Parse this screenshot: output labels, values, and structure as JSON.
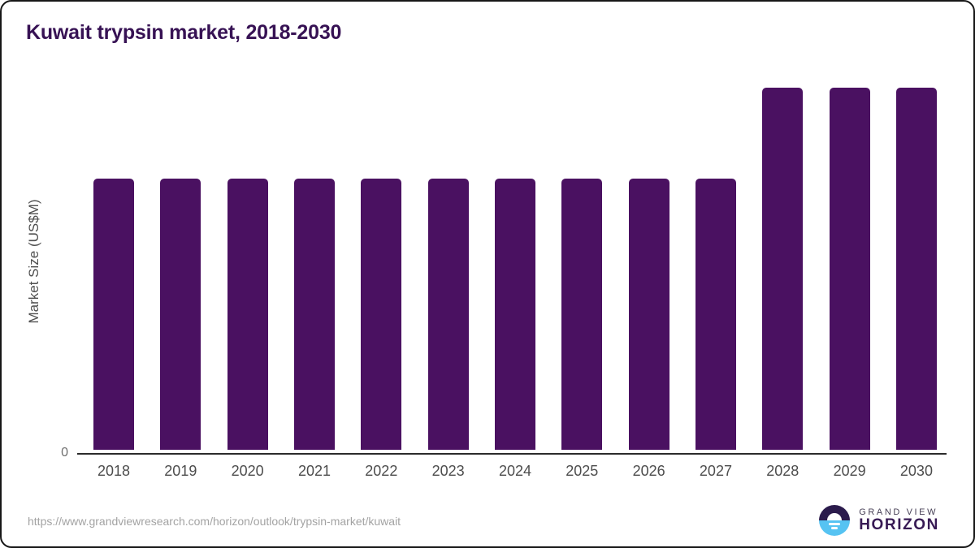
{
  "page": {
    "background": "#ffffff",
    "frame_border_color": "#161616"
  },
  "header": {
    "title": "Kuwait trypsin market, 2018-2030",
    "title_color": "#371254"
  },
  "axes": {
    "zero_label": "0",
    "ylabel": "Market Size (US$M)"
  },
  "chart_data": {
    "type": "bar",
    "title": "Kuwait trypsin market, 2018-2030",
    "categories": [
      "2018",
      "2019",
      "2020",
      "2021",
      "2022",
      "2023",
      "2024",
      "2025",
      "2026",
      "2027",
      "2028",
      "2029",
      "2030"
    ],
    "values": [
      75,
      75,
      75,
      75,
      75,
      75,
      75,
      75,
      75,
      75,
      100,
      100,
      100
    ],
    "xlabel": "",
    "ylabel": "Market Size (US$M)",
    "ylim": [
      0,
      100
    ],
    "y_ticks_visible": [
      "0"
    ],
    "grid": false,
    "legend": false,
    "bar_color": "#4a1161",
    "note": "y-axis is unlabeled except 0; values are relative estimates normalized to tallest bars (2028-2030) = 100"
  },
  "footer": {
    "source_url": "https://www.grandviewresearch.com/horizon/outlook/trypsin-market/kuwait",
    "logo": {
      "line1": "GRAND VIEW",
      "line2": "HORIZON",
      "icon_top_color": "#2b1b4c",
      "icon_bottom_color": "#56c3f2"
    }
  }
}
